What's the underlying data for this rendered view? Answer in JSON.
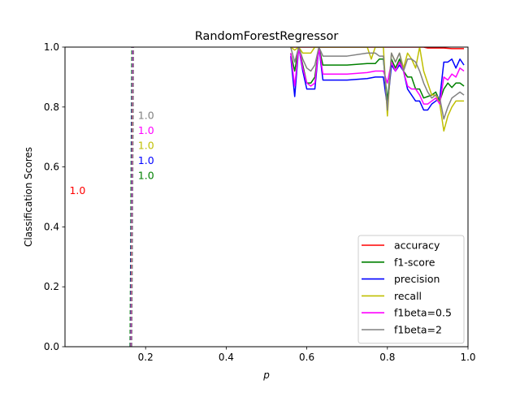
{
  "chart_data": {
    "type": "line",
    "title": "RandomForestRegressor",
    "xlabel": "p",
    "ylabel": "Classification Scores",
    "xlim": [
      0.0,
      1.0
    ],
    "ylim": [
      0.0,
      1.0
    ],
    "xticks": [
      0.2,
      0.4,
      0.6,
      0.8,
      1.0
    ],
    "xtick_labels": [
      "0.2",
      "0.4",
      "0.6",
      "0.8",
      "1.0"
    ],
    "yticks": [
      0.0,
      0.2,
      0.4,
      0.6,
      0.8,
      1.0
    ],
    "ytick_labels": [
      "0.0",
      "0.2",
      "0.4",
      "0.6",
      "0.8",
      "1.0"
    ],
    "grid": false,
    "legend_position": "lower right",
    "series": [
      {
        "name": "accuracy",
        "color": "#ff0000",
        "x": [
          0.56,
          0.57,
          0.58,
          0.59,
          0.6,
          0.61,
          0.62,
          0.63,
          0.64,
          0.65,
          0.7,
          0.75,
          0.78,
          0.79,
          0.8,
          0.81,
          0.82,
          0.83,
          0.84,
          0.85,
          0.86,
          0.87,
          0.88,
          0.89,
          0.9,
          0.91,
          0.92,
          0.93,
          0.94,
          0.95,
          0.96,
          0.97,
          0.98,
          0.99
        ],
        "y": [
          1.0,
          1.0,
          1.0,
          1.0,
          1.0,
          1.0,
          1.0,
          1.0,
          1.0,
          1.0,
          1.0,
          1.0,
          1.0,
          1.0,
          1.0,
          1.0,
          1.0,
          1.0,
          1.0,
          1.0,
          1.0,
          1.0,
          1.0,
          1.0,
          0.997,
          0.997,
          0.997,
          0.997,
          0.997,
          0.996,
          0.995,
          0.995,
          0.995,
          0.995
        ]
      },
      {
        "name": "f1-score",
        "color": "#008000",
        "x": [
          0.56,
          0.57,
          0.58,
          0.59,
          0.6,
          0.61,
          0.62,
          0.63,
          0.64,
          0.65,
          0.7,
          0.75,
          0.77,
          0.78,
          0.79,
          0.8,
          0.81,
          0.82,
          0.83,
          0.84,
          0.85,
          0.86,
          0.87,
          0.88,
          0.89,
          0.9,
          0.91,
          0.92,
          0.93,
          0.94,
          0.95,
          0.96,
          0.97,
          0.98,
          0.99
        ],
        "y": [
          0.98,
          0.92,
          1.0,
          0.94,
          0.88,
          0.88,
          0.9,
          1.0,
          0.94,
          0.94,
          0.94,
          0.945,
          0.945,
          0.96,
          0.96,
          0.82,
          0.96,
          0.93,
          0.96,
          0.92,
          0.9,
          0.9,
          0.86,
          0.86,
          0.83,
          0.835,
          0.84,
          0.85,
          0.82,
          0.86,
          0.88,
          0.865,
          0.88,
          0.88,
          0.87
        ]
      },
      {
        "name": "precision",
        "color": "#0000ff",
        "x": [
          0.56,
          0.57,
          0.58,
          0.59,
          0.6,
          0.61,
          0.62,
          0.63,
          0.64,
          0.65,
          0.7,
          0.75,
          0.77,
          0.78,
          0.79,
          0.8,
          0.81,
          0.82,
          0.83,
          0.84,
          0.85,
          0.86,
          0.87,
          0.88,
          0.89,
          0.9,
          0.91,
          0.92,
          0.93,
          0.94,
          0.95,
          0.96,
          0.97,
          0.98,
          0.99
        ],
        "y": [
          0.97,
          0.835,
          1.0,
          0.92,
          0.86,
          0.86,
          0.86,
          1.0,
          0.89,
          0.89,
          0.89,
          0.895,
          0.9,
          0.9,
          0.9,
          0.8,
          0.94,
          0.92,
          0.94,
          0.92,
          0.86,
          0.84,
          0.82,
          0.82,
          0.79,
          0.79,
          0.81,
          0.82,
          0.83,
          0.95,
          0.95,
          0.96,
          0.93,
          0.96,
          0.94
        ]
      },
      {
        "name": "recall",
        "color": "#bfbf00",
        "x": [
          0.56,
          0.57,
          0.58,
          0.59,
          0.6,
          0.61,
          0.62,
          0.63,
          0.64,
          0.65,
          0.7,
          0.75,
          0.76,
          0.77,
          0.78,
          0.79,
          0.8,
          0.81,
          0.82,
          0.83,
          0.84,
          0.85,
          0.86,
          0.87,
          0.88,
          0.89,
          0.9,
          0.91,
          0.92,
          0.93,
          0.94,
          0.95,
          0.96,
          0.97,
          0.98,
          0.99
        ],
        "y": [
          1.0,
          0.99,
          1.0,
          0.98,
          0.98,
          0.98,
          1.0,
          1.0,
          1.0,
          1.0,
          1.0,
          1.0,
          0.96,
          1.0,
          1.0,
          1.0,
          0.77,
          0.98,
          0.95,
          0.98,
          0.93,
          0.98,
          0.96,
          0.93,
          1.0,
          0.92,
          0.88,
          0.84,
          0.84,
          0.81,
          0.72,
          0.77,
          0.8,
          0.82,
          0.82,
          0.82
        ]
      },
      {
        "name": "f1beta=0.5",
        "color": "#ff00ff",
        "x": [
          0.56,
          0.57,
          0.58,
          0.59,
          0.6,
          0.61,
          0.62,
          0.63,
          0.64,
          0.65,
          0.7,
          0.75,
          0.77,
          0.78,
          0.79,
          0.8,
          0.81,
          0.82,
          0.83,
          0.84,
          0.85,
          0.86,
          0.87,
          0.88,
          0.89,
          0.9,
          0.91,
          0.92,
          0.93,
          0.94,
          0.95,
          0.96,
          0.97,
          0.98,
          0.99
        ],
        "y": [
          0.98,
          0.87,
          1.0,
          0.93,
          0.88,
          0.87,
          0.88,
          1.0,
          0.91,
          0.91,
          0.91,
          0.915,
          0.92,
          0.92,
          0.92,
          0.88,
          0.95,
          0.92,
          0.95,
          0.92,
          0.87,
          0.86,
          0.86,
          0.84,
          0.81,
          0.81,
          0.82,
          0.83,
          0.81,
          0.9,
          0.89,
          0.91,
          0.9,
          0.93,
          0.92
        ]
      },
      {
        "name": "f1beta=2",
        "color": "#808080",
        "x": [
          0.56,
          0.57,
          0.58,
          0.59,
          0.6,
          0.61,
          0.62,
          0.63,
          0.64,
          0.65,
          0.7,
          0.75,
          0.77,
          0.78,
          0.79,
          0.8,
          0.81,
          0.82,
          0.83,
          0.84,
          0.85,
          0.86,
          0.87,
          0.88,
          0.89,
          0.9,
          0.91,
          0.92,
          0.93,
          0.94,
          0.95,
          0.96,
          0.97,
          0.98,
          0.99
        ],
        "y": [
          1.0,
          0.95,
          1.0,
          0.96,
          0.93,
          0.92,
          0.94,
          1.0,
          0.97,
          0.97,
          0.97,
          0.98,
          0.98,
          0.97,
          0.97,
          0.79,
          0.98,
          0.95,
          0.98,
          0.92,
          0.96,
          0.96,
          0.95,
          0.92,
          0.88,
          0.85,
          0.83,
          0.84,
          0.83,
          0.76,
          0.8,
          0.83,
          0.84,
          0.85,
          0.84
        ]
      }
    ],
    "vertical_markers": [
      {
        "series": "f1-score",
        "x": 0.166,
        "color": "#008000"
      },
      {
        "series": "precision",
        "x": 0.167,
        "color": "#0000ff"
      },
      {
        "series": "recall",
        "x": 0.168,
        "color": "#bfbf00"
      },
      {
        "series": "f1beta=0.5",
        "x": 0.169,
        "color": "#ff00ff"
      },
      {
        "series": "f1beta=2",
        "x": 0.17,
        "color": "#808080"
      }
    ],
    "annotations": [
      {
        "text": "1.0",
        "x": 0.011,
        "y": 0.51,
        "color": "#ff0000"
      },
      {
        "text": "1.0",
        "x": 0.181,
        "y": 0.56,
        "color": "#008000"
      },
      {
        "text": "1.0",
        "x": 0.181,
        "y": 0.61,
        "color": "#0000ff"
      },
      {
        "text": "1.0",
        "x": 0.181,
        "y": 0.66,
        "color": "#bfbf00"
      },
      {
        "text": "1.0",
        "x": 0.181,
        "y": 0.71,
        "color": "#ff00ff"
      },
      {
        "text": "1.0",
        "x": 0.181,
        "y": 0.76,
        "color": "#808080"
      }
    ]
  }
}
